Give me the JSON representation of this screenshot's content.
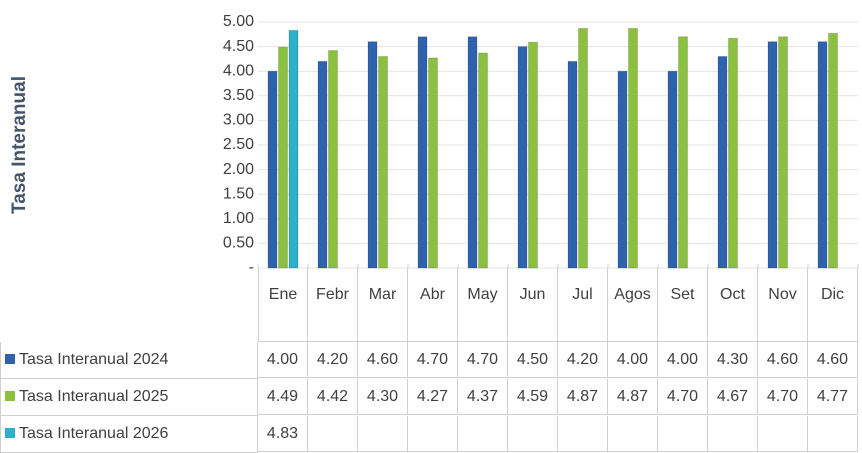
{
  "chart_data": {
    "type": "bar",
    "y_label": "Tasa Interanual",
    "categories": [
      "Ene",
      "Febr",
      "Mar",
      "Abr",
      "May",
      "Jun",
      "Jul",
      "Agos",
      "Set",
      "Oct",
      "Nov",
      "Dic"
    ],
    "series": [
      {
        "name": "Tasa Interanual 2024",
        "color": "#2e62ad",
        "values": [
          4.0,
          4.2,
          4.6,
          4.7,
          4.7,
          4.5,
          4.2,
          4.0,
          4.0,
          4.3,
          4.6,
          4.6
        ],
        "value_labels": [
          "4.00",
          "4.20",
          "4.60",
          "4.70",
          "4.70",
          "4.50",
          "4.20",
          "4.00",
          "4.00",
          "4.30",
          "4.60",
          "4.60"
        ]
      },
      {
        "name": "Tasa Interanual 2025",
        "color": "#8cc03f",
        "values": [
          4.49,
          4.42,
          4.3,
          4.27,
          4.37,
          4.59,
          4.87,
          4.87,
          4.7,
          4.67,
          4.7,
          4.77
        ],
        "value_labels": [
          "4.49",
          "4.42",
          "4.30",
          "4.27",
          "4.37",
          "4.59",
          "4.87",
          "4.87",
          "4.70",
          "4.67",
          "4.70",
          "4.77"
        ]
      },
      {
        "name": "Tasa Interanual 2026",
        "color": "#2bb1c9",
        "values": [
          4.83,
          null,
          null,
          null,
          null,
          null,
          null,
          null,
          null,
          null,
          null,
          null
        ],
        "value_labels": [
          "4.83",
          null,
          null,
          null,
          null,
          null,
          null,
          null,
          null,
          null,
          null,
          null
        ]
      }
    ],
    "ylim": [
      0,
      5
    ],
    "yticks": [
      {
        "value": 0,
        "label": "-"
      },
      {
        "value": 0.5,
        "label": "0.50"
      },
      {
        "value": 1,
        "label": "1.00"
      },
      {
        "value": 1.5,
        "label": "1.50"
      },
      {
        "value": 2,
        "label": "2.00"
      },
      {
        "value": 2.5,
        "label": "2.50"
      },
      {
        "value": 3,
        "label": "3.00"
      },
      {
        "value": 3.5,
        "label": "3.50"
      },
      {
        "value": 4,
        "label": "4.00"
      },
      {
        "value": 4.5,
        "label": "4.50"
      },
      {
        "value": 5,
        "label": "5.00"
      }
    ],
    "grid": true
  }
}
